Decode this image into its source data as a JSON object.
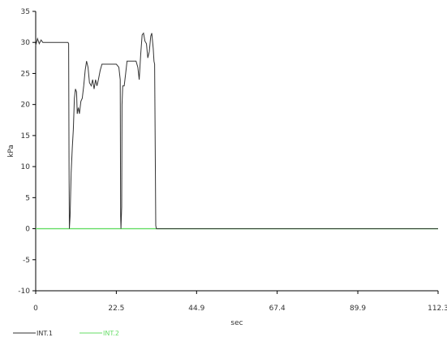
{
  "chart_data": {
    "type": "line",
    "xlabel": "sec",
    "ylabel": "kPa",
    "xlim": [
      0,
      112.3
    ],
    "ylim": [
      -10,
      35
    ],
    "x_ticks": [
      "0",
      "22.5",
      "44.9",
      "67.4",
      "89.9",
      "112.3"
    ],
    "y_ticks": [
      "35",
      "30",
      "25",
      "20",
      "15",
      "10",
      "5",
      "0",
      "-5",
      "-10"
    ],
    "grid": false,
    "legend_placement": "bottom-left",
    "series": [
      {
        "name": "INT.1",
        "color": "#333333",
        "points": [
          [
            0,
            29.5
          ],
          [
            0.5,
            30.6
          ],
          [
            1.0,
            29.8
          ],
          [
            1.5,
            30.4
          ],
          [
            2.0,
            30.0
          ],
          [
            3.5,
            30.0
          ],
          [
            6.0,
            30.0
          ],
          [
            9.0,
            30.0
          ],
          [
            9.2,
            29.8
          ],
          [
            9.3,
            10.0
          ],
          [
            9.4,
            0.0
          ],
          [
            9.6,
            2.0
          ],
          [
            9.9,
            9.0
          ],
          [
            10.2,
            13.0
          ],
          [
            10.5,
            16.0
          ],
          [
            10.8,
            21.0
          ],
          [
            11.1,
            22.5
          ],
          [
            11.4,
            22.0
          ],
          [
            11.6,
            18.5
          ],
          [
            11.9,
            19.5
          ],
          [
            12.2,
            18.5
          ],
          [
            12.6,
            20.5
          ],
          [
            13.0,
            21.0
          ],
          [
            13.4,
            23.0
          ],
          [
            13.8,
            25.5
          ],
          [
            14.2,
            27.0
          ],
          [
            14.6,
            26.0
          ],
          [
            15.0,
            23.5
          ],
          [
            15.5,
            23.0
          ],
          [
            15.9,
            24.0
          ],
          [
            16.3,
            22.5
          ],
          [
            16.7,
            24.0
          ],
          [
            17.1,
            23.0
          ],
          [
            17.5,
            24.0
          ],
          [
            18.0,
            25.5
          ],
          [
            18.5,
            26.5
          ],
          [
            19.5,
            26.5
          ],
          [
            21.0,
            26.5
          ],
          [
            22.5,
            26.5
          ],
          [
            23.2,
            26.0
          ],
          [
            23.6,
            24.0
          ],
          [
            23.7,
            2.0
          ],
          [
            23.8,
            0.0
          ],
          [
            24.0,
            3.5
          ],
          [
            24.1,
            20.0
          ],
          [
            24.3,
            23.0
          ],
          [
            24.7,
            23.0
          ],
          [
            25.1,
            25.0
          ],
          [
            25.5,
            27.0
          ],
          [
            26.5,
            27.0
          ],
          [
            28.0,
            27.0
          ],
          [
            28.5,
            26.0
          ],
          [
            28.9,
            24.0
          ],
          [
            29.3,
            28.0
          ],
          [
            29.7,
            31.2
          ],
          [
            30.1,
            31.5
          ],
          [
            30.5,
            30.2
          ],
          [
            30.9,
            29.8
          ],
          [
            31.3,
            27.5
          ],
          [
            31.7,
            28.5
          ],
          [
            32.1,
            31.0
          ],
          [
            32.4,
            31.5
          ],
          [
            32.8,
            29.0
          ],
          [
            33.0,
            27.0
          ],
          [
            33.2,
            26.5
          ],
          [
            33.4,
            10.0
          ],
          [
            33.5,
            0.5
          ],
          [
            33.7,
            0.0
          ],
          [
            45.0,
            0.0
          ],
          [
            70.0,
            0.0
          ],
          [
            112.3,
            0.0
          ]
        ]
      },
      {
        "name": "INT.2",
        "color": "#66dd66",
        "points": [
          [
            0,
            0
          ],
          [
            112.3,
            0
          ]
        ]
      }
    ]
  }
}
